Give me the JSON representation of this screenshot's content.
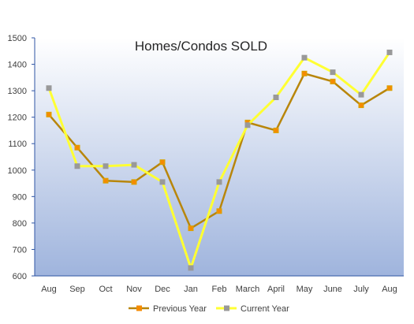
{
  "chart_data": {
    "type": "line",
    "title": "Homes/Condos SOLD",
    "xlabel": "",
    "ylabel": "",
    "categories": [
      "Aug",
      "Sep",
      "Oct",
      "Nov",
      "Dec",
      "Jan",
      "Feb",
      "March",
      "April",
      "May",
      "June",
      "July",
      "Aug"
    ],
    "ylim": [
      600,
      1500
    ],
    "yticks": [
      600,
      700,
      800,
      900,
      1000,
      1100,
      1200,
      1300,
      1400,
      1500
    ],
    "grid": false,
    "legend_position": "bottom",
    "series": [
      {
        "name": "Previous Year",
        "color": "#b8860b",
        "marker_color": "#f58b00",
        "values": [
          1210,
          1085,
          960,
          955,
          1030,
          780,
          845,
          1180,
          1150,
          1365,
          1335,
          1245,
          1310
        ]
      },
      {
        "name": "Current Year",
        "color": "#ffff33",
        "marker_color": "#999999",
        "values": [
          1310,
          1015,
          1015,
          1020,
          955,
          630,
          955,
          1170,
          1275,
          1425,
          1370,
          1285,
          1445
        ]
      }
    ],
    "background_gradient": [
      "#ffffff",
      "#9fb4dd"
    ]
  }
}
